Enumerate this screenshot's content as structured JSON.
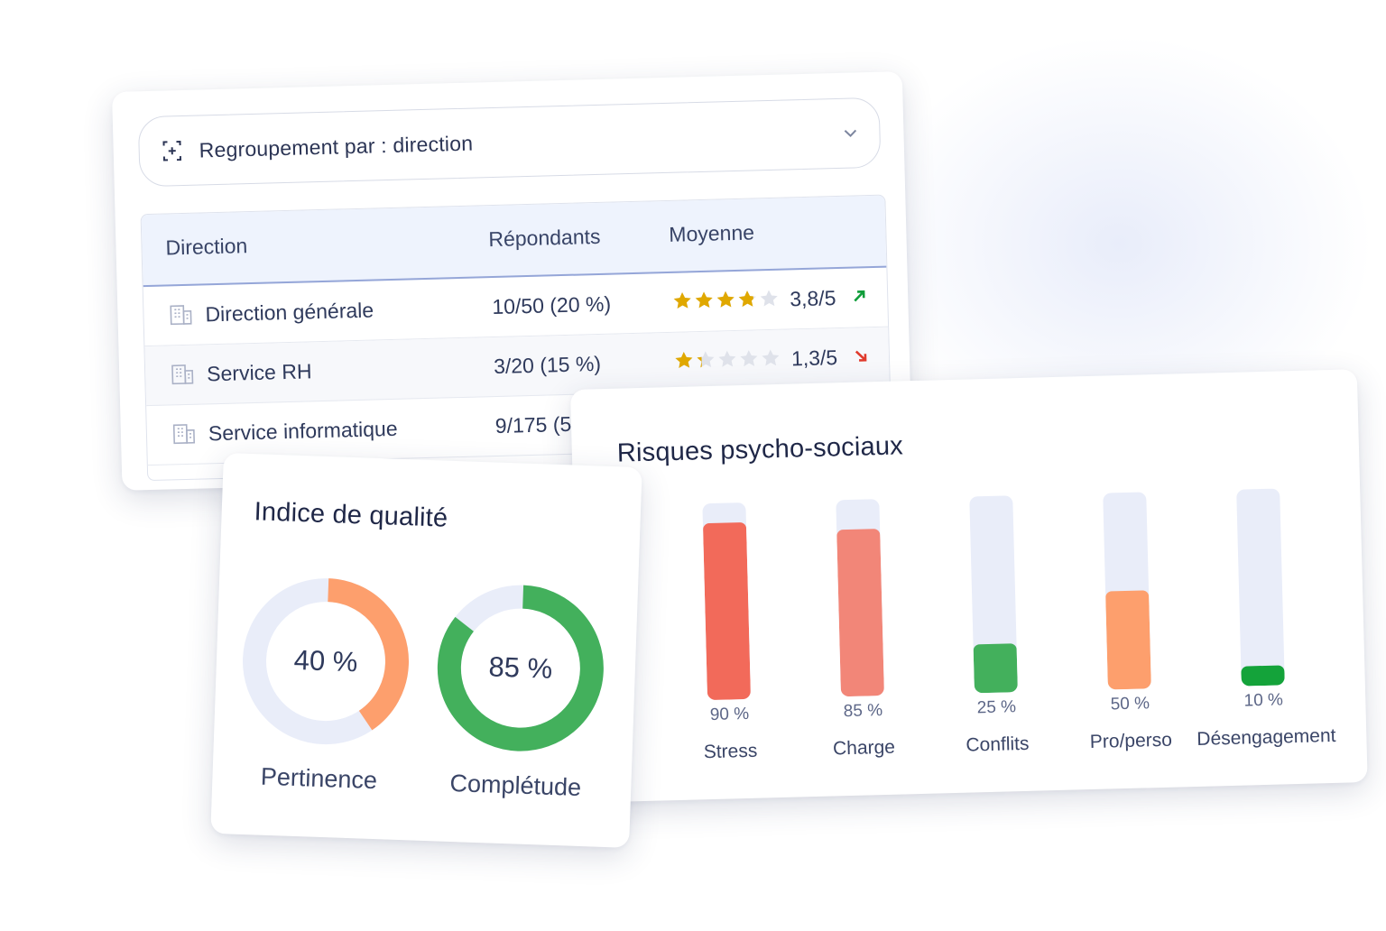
{
  "groupby": {
    "label": "Regroupement par : direction",
    "icon": "group-add-icon"
  },
  "table": {
    "columns": [
      "Direction",
      "Répondants",
      "Moyenne"
    ],
    "rows": [
      {
        "name": "Direction générale",
        "respondents": "10/50  (20 %)",
        "rating": 3.8,
        "score": "3,8/5",
        "trend": "up"
      },
      {
        "name": "Service RH",
        "respondents": "3/20  (15 %)",
        "rating": 1.3,
        "score": "1,3/5",
        "trend": "down"
      },
      {
        "name": "Service informatique",
        "respondents": "9/175  (5,",
        "rating": null,
        "score": "",
        "trend": null
      }
    ]
  },
  "rps": {
    "title": "Risques psycho-sociaux",
    "bars": [
      {
        "label": "Stress",
        "value": 90,
        "value_label": "90 %",
        "color": "#f26a5a"
      },
      {
        "label": "Charge",
        "value": 85,
        "value_label": "85 %",
        "color": "#f28678"
      },
      {
        "label": "Conflits",
        "value": 25,
        "value_label": "25 %",
        "color": "#43b05c"
      },
      {
        "label": "Pro/perso",
        "value": 50,
        "value_label": "50 %",
        "color": "#fd9f6d"
      },
      {
        "label": "Désengagement",
        "value": 10,
        "value_label": "10 %",
        "color": "#14a33a"
      }
    ]
  },
  "quality": {
    "title": "Indice de qualité",
    "donuts": [
      {
        "label": "Pertinence",
        "value": 40,
        "value_label": "40 %",
        "color": "#fd9f6d"
      },
      {
        "label": "Complétude",
        "value": 85,
        "value_label": "85 %",
        "color": "#43b05c"
      }
    ]
  },
  "colors": {
    "star": "#e0a800",
    "star_empty": "#dfe2ea",
    "track": "#e9edf9",
    "trend_up": "#0f9d3a",
    "trend_down": "#e03a2c"
  }
}
